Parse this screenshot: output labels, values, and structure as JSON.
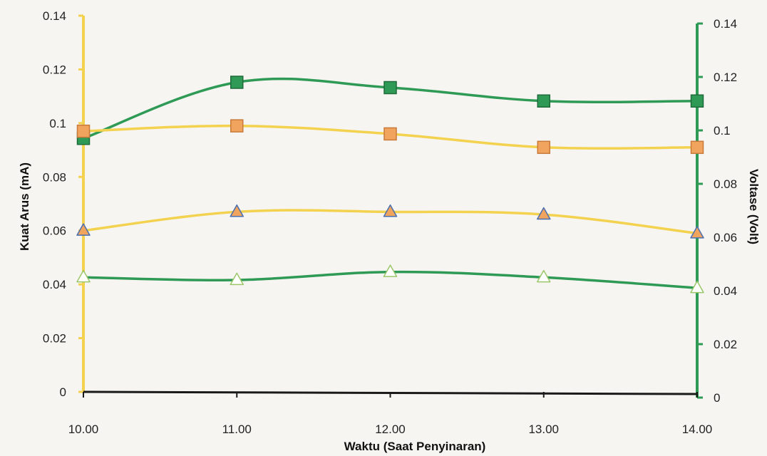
{
  "chart_data": {
    "type": "line",
    "title": "",
    "xlabel": "Waktu (Saat Penyinaran)",
    "ylabel_left": "Kuat Arus (mA)",
    "ylabel_right": "Voltase (Volt)",
    "categories": [
      "10.00",
      "11.00",
      "12.00",
      "13.00",
      "14.00"
    ],
    "y_left": {
      "range": [
        0,
        0.14
      ],
      "ticks": [
        "0",
        "0.02",
        "0.04",
        "0.06",
        "0.08",
        "0.1",
        "0.12",
        "0.14"
      ]
    },
    "y_right": {
      "range": [
        0,
        0.14
      ],
      "ticks": [
        "0",
        "0.02",
        "0.04",
        "0.06",
        "0.08",
        "0.1",
        "0.12",
        "0.14"
      ]
    },
    "grid": false,
    "legend": "none",
    "colors": {
      "left_axis": "#f3d250",
      "right_axis": "#2e9a55",
      "bottom_axis": "#1a1a1a",
      "orange_marker": "#f0a45e",
      "marker_outline_blue": "#4a6fb0",
      "green_marker": "#2e9a55",
      "white_marker": "#ffffff"
    },
    "series": [
      {
        "axis": "right",
        "values": [
          0.097,
          0.118,
          0.116,
          0.111,
          0.111
        ],
        "line_color": "#2e9a55",
        "marker": "square",
        "marker_fill": "#2e9a55",
        "marker_stroke": "#1f6b3a"
      },
      {
        "axis": "left",
        "values": [
          0.097,
          0.099,
          0.096,
          0.091,
          0.091
        ],
        "line_color": "#f3d250",
        "marker": "square",
        "marker_fill": "#f0a45e",
        "marker_stroke": "#c97a3a"
      },
      {
        "axis": "left",
        "values": [
          0.06,
          0.067,
          0.067,
          0.066,
          0.059
        ],
        "line_color": "#f3d250",
        "marker": "triangle",
        "marker_fill": "#f0a45e",
        "marker_stroke": "#4a6fb0"
      },
      {
        "axis": "right",
        "values": [
          0.045,
          0.044,
          0.047,
          0.045,
          0.041
        ],
        "line_color": "#2e9a55",
        "marker": "triangle",
        "marker_fill": "#ffffff",
        "marker_stroke": "#9bc76a"
      }
    ]
  }
}
